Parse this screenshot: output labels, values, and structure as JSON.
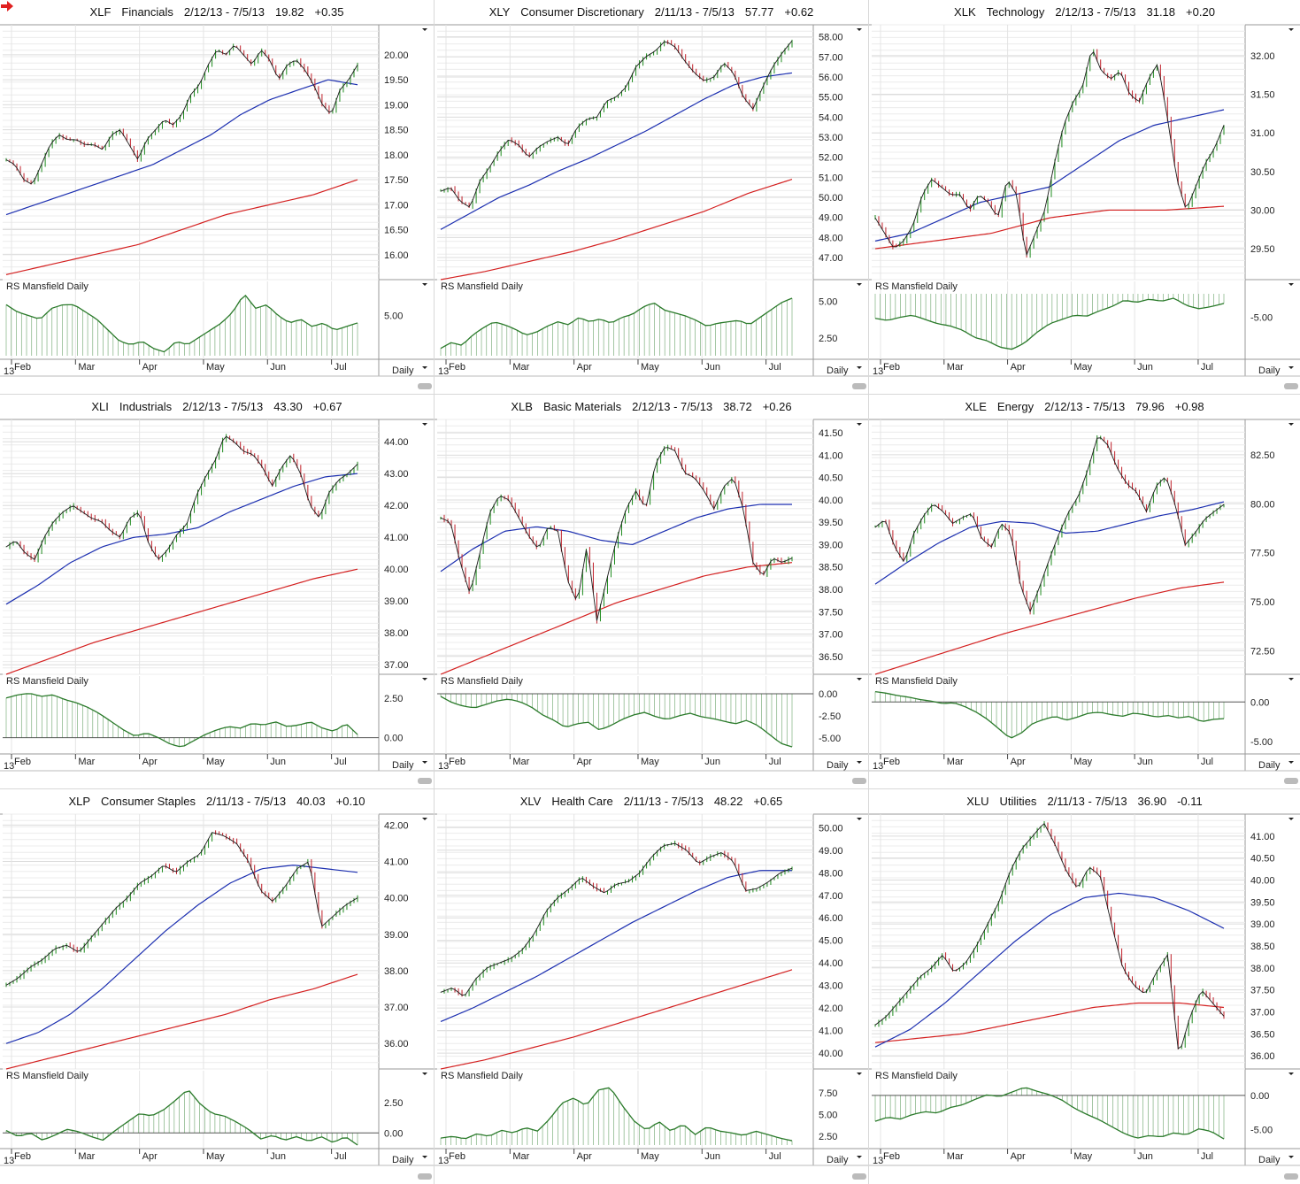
{
  "period_label": "Daily",
  "rs_title": "RS Mansfield Daily",
  "year_label": "13",
  "months": [
    "Feb",
    "Mar",
    "Apr",
    "May",
    "Jun",
    "Jul"
  ],
  "colors": {
    "price": "#1a1a1a",
    "up": "#1e8c1e",
    "down": "#c0202a",
    "ma_fast": "#1c2fb0",
    "ma_slow": "#d42020",
    "rs": "#2a7a2a"
  },
  "chart_data": [
    {
      "type": "line",
      "symbol": "XLF",
      "name": "Financials",
      "range": "2/12/13 - 7/5/13",
      "last": "19.82",
      "change": "+0.35",
      "flag": true,
      "ylim": [
        15.5,
        20.6
      ],
      "ticks": [
        "20.00",
        "19.50",
        "19.00",
        "18.50",
        "18.00",
        "17.50",
        "17.00",
        "16.50",
        "16.00"
      ],
      "price": [
        17.9,
        17.8,
        17.5,
        17.4,
        17.8,
        18.2,
        18.4,
        18.3,
        18.3,
        18.2,
        18.2,
        18.1,
        18.4,
        18.5,
        18.2,
        17.9,
        18.3,
        18.5,
        18.7,
        18.6,
        18.8,
        19.2,
        19.4,
        19.8,
        20.1,
        20.0,
        20.2,
        20.0,
        19.8,
        20.1,
        19.9,
        19.5,
        19.8,
        19.9,
        19.7,
        19.4,
        19.0,
        18.8,
        19.3,
        19.5,
        19.8
      ],
      "ma_fast": [
        16.8,
        17.0,
        17.2,
        17.4,
        17.6,
        17.8,
        18.1,
        18.4,
        18.8,
        19.1,
        19.3,
        19.5,
        19.4
      ],
      "ma_slow": [
        15.6,
        15.8,
        16.0,
        16.2,
        16.5,
        16.8,
        17.0,
        17.2,
        17.5
      ],
      "rs_ylim": [
        3.9,
        5.6
      ],
      "rs_ticks": [
        "5.00"
      ],
      "rs_zero": 3.9,
      "rs": [
        5.3,
        5.1,
        5.0,
        4.9,
        5.2,
        5.3,
        5.3,
        5.1,
        4.9,
        4.6,
        4.3,
        4.2,
        4.3,
        4.1,
        4.0,
        4.3,
        4.2,
        4.4,
        4.6,
        4.8,
        5.1,
        5.6,
        5.2,
        5.3,
        5.0,
        4.8,
        4.9,
        4.7,
        4.8,
        4.6,
        4.7,
        4.8
      ]
    },
    {
      "type": "line",
      "symbol": "XLY",
      "name": "Consumer Discretionary",
      "range": "2/11/13 - 7/5/13",
      "last": "57.77",
      "change": "+0.62",
      "flag": false,
      "ylim": [
        45.9,
        58.6
      ],
      "ticks": [
        "58.00",
        "57.00",
        "56.00",
        "55.00",
        "54.00",
        "53.00",
        "52.00",
        "51.00",
        "50.00",
        "49.00",
        "48.00",
        "47.00"
      ],
      "price": [
        50.3,
        50.5,
        49.8,
        49.5,
        50.8,
        51.5,
        52.3,
        52.9,
        52.6,
        52.0,
        52.5,
        52.8,
        53.0,
        52.6,
        53.5,
        53.9,
        54.0,
        54.8,
        55.0,
        55.5,
        56.5,
        57.0,
        57.3,
        57.8,
        57.5,
        56.8,
        56.2,
        55.8,
        56.0,
        56.7,
        56.2,
        55.0,
        54.4,
        55.5,
        56.5,
        57.2,
        57.8
      ],
      "ma_fast": [
        48.4,
        49.2,
        50.0,
        50.6,
        51.3,
        51.9,
        52.6,
        53.3,
        54.1,
        54.9,
        55.6,
        56.0,
        56.2
      ],
      "ma_slow": [
        45.9,
        46.3,
        46.8,
        47.3,
        47.9,
        48.6,
        49.3,
        50.2,
        50.9
      ],
      "rs_ylim": [
        1.3,
        5.5
      ],
      "rs_ticks": [
        "5.00",
        "2.50"
      ],
      "rs_zero": 1.3,
      "rs": [
        1.8,
        2.2,
        2.0,
        2.7,
        3.2,
        3.6,
        3.4,
        3.1,
        2.7,
        2.9,
        3.3,
        3.6,
        3.4,
        3.9,
        3.6,
        3.8,
        3.5,
        3.9,
        4.1,
        4.6,
        4.9,
        4.4,
        4.2,
        4.0,
        3.7,
        3.3,
        3.5,
        3.6,
        3.7,
        3.4,
        3.9,
        4.4,
        4.9,
        5.2
      ]
    },
    {
      "type": "line",
      "symbol": "XLK",
      "name": "Technology",
      "range": "2/12/13 - 7/5/13",
      "last": "31.18",
      "change": "+0.20",
      "flag": false,
      "ylim": [
        29.1,
        32.4
      ],
      "ticks": [
        "32.00",
        "31.50",
        "31.00",
        "30.50",
        "30.00",
        "29.50"
      ],
      "price": [
        29.9,
        29.7,
        29.5,
        29.6,
        29.8,
        30.2,
        30.4,
        30.3,
        30.2,
        30.2,
        30.0,
        30.2,
        30.1,
        29.9,
        30.4,
        30.2,
        29.4,
        29.7,
        30.0,
        30.6,
        31.1,
        31.4,
        31.6,
        32.1,
        31.8,
        31.7,
        31.8,
        31.5,
        31.4,
        31.7,
        31.9,
        31.2,
        30.4,
        30.0,
        30.3,
        30.6,
        30.8,
        31.1
      ],
      "ma_fast": [
        29.6,
        29.7,
        29.9,
        30.1,
        30.2,
        30.3,
        30.6,
        30.9,
        31.1,
        31.2,
        31.3
      ],
      "ma_slow": [
        29.5,
        29.6,
        29.7,
        29.9,
        30.0,
        30.0,
        30.05
      ],
      "rs_ylim": [
        -8.6,
        -2.8
      ],
      "rs_ticks": [
        "-5.00"
      ],
      "rs_zero": -2.8,
      "rs": [
        -5.1,
        -5.3,
        -5.0,
        -4.8,
        -5.2,
        -5.6,
        -5.8,
        -6.2,
        -6.9,
        -7.2,
        -7.8,
        -8.0,
        -7.4,
        -6.4,
        -5.6,
        -5.2,
        -4.8,
        -4.9,
        -4.4,
        -4.0,
        -3.4,
        -3.6,
        -3.3,
        -3.5,
        -3.2,
        -3.9,
        -4.2,
        -4.0,
        -3.7
      ]
    },
    {
      "type": "line",
      "symbol": "XLI",
      "name": "Industrials",
      "range": "2/12/13 - 7/5/13",
      "last": "43.30",
      "change": "+0.67",
      "flag": false,
      "ylim": [
        36.7,
        44.7
      ],
      "ticks": [
        "44.00",
        "43.00",
        "42.00",
        "41.00",
        "40.00",
        "39.00",
        "38.00",
        "37.00"
      ],
      "price": [
        40.7,
        40.9,
        40.5,
        40.3,
        41.0,
        41.5,
        41.8,
        42.0,
        41.8,
        41.6,
        41.5,
        41.2,
        41.0,
        41.6,
        41.8,
        40.8,
        40.3,
        40.6,
        41.1,
        41.4,
        42.3,
        42.9,
        43.4,
        44.2,
        44.0,
        43.7,
        43.6,
        43.2,
        42.6,
        43.2,
        43.6,
        43.0,
        42.0,
        41.6,
        42.4,
        42.8,
        43.0,
        43.3
      ],
      "ma_fast": [
        38.9,
        39.5,
        40.2,
        40.7,
        41.0,
        41.1,
        41.3,
        41.8,
        42.2,
        42.6,
        42.9,
        43.0
      ],
      "ma_slow": [
        36.7,
        37.2,
        37.7,
        38.1,
        38.5,
        38.9,
        39.3,
        39.7,
        40.0
      ],
      "rs_ylim": [
        -0.8,
        3.1
      ],
      "rs_ticks": [
        "2.50",
        "0.00"
      ],
      "rs_zero": 0.0,
      "rs": [
        2.5,
        2.7,
        2.8,
        2.6,
        2.7,
        2.4,
        2.2,
        1.9,
        1.5,
        1.0,
        0.5,
        0.1,
        0.3,
        0.0,
        -0.4,
        -0.6,
        -0.2,
        0.2,
        0.5,
        0.7,
        0.6,
        0.9,
        0.8,
        1.0,
        0.7,
        0.8,
        1.0,
        0.6,
        0.4,
        0.9,
        0.2
      ]
    },
    {
      "type": "line",
      "symbol": "XLB",
      "name": "Basic Materials",
      "range": "2/12/13 - 7/5/13",
      "last": "38.72",
      "change": "+0.26",
      "flag": false,
      "ylim": [
        36.1,
        41.8
      ],
      "ticks": [
        "41.50",
        "41.00",
        "40.50",
        "40.00",
        "39.50",
        "39.00",
        "38.50",
        "38.00",
        "37.50",
        "37.00",
        "36.50"
      ],
      "price": [
        39.6,
        39.5,
        38.6,
        37.9,
        38.8,
        39.7,
        40.1,
        40.0,
        39.6,
        39.2,
        38.9,
        39.4,
        39.3,
        38.2,
        37.7,
        39.0,
        37.3,
        38.2,
        39.1,
        39.8,
        40.2,
        39.8,
        40.8,
        41.2,
        41.1,
        40.6,
        40.5,
        40.2,
        39.8,
        40.3,
        40.5,
        39.8,
        38.6,
        38.3,
        38.7,
        38.6,
        38.7
      ],
      "ma_fast": [
        38.4,
        38.9,
        39.3,
        39.4,
        39.3,
        39.1,
        39.0,
        39.3,
        39.6,
        39.8,
        39.9,
        39.9
      ],
      "ma_slow": [
        36.1,
        36.5,
        36.9,
        37.3,
        37.7,
        38.0,
        38.3,
        38.5,
        38.6
      ],
      "rs_ylim": [
        -6.4,
        0.6
      ],
      "rs_ticks": [
        "0.00",
        "-2.50",
        "-5.00"
      ],
      "rs_zero": 0.0,
      "rs": [
        -0.3,
        -1.0,
        -1.4,
        -1.6,
        -1.2,
        -0.8,
        -0.6,
        -0.9,
        -1.5,
        -2.4,
        -3.0,
        -3.8,
        -3.4,
        -3.2,
        -4.1,
        -3.6,
        -2.9,
        -2.4,
        -2.1,
        -2.6,
        -2.9,
        -2.5,
        -2.2,
        -2.6,
        -2.8,
        -3.1,
        -3.4,
        -3.0,
        -3.6,
        -4.6,
        -5.6,
        -6.0
      ]
    },
    {
      "type": "line",
      "symbol": "XLE",
      "name": "Energy",
      "range": "2/12/13 - 7/5/13",
      "last": "79.96",
      "change": "+0.98",
      "flag": false,
      "ylim": [
        71.3,
        84.3
      ],
      "ticks": [
        "82.50",
        "80.00",
        "77.50",
        "75.00",
        "72.50"
      ],
      "price": [
        78.8,
        79.2,
        77.8,
        77.0,
        78.5,
        79.4,
        80.0,
        79.6,
        79.0,
        79.3,
        79.5,
        78.2,
        77.8,
        79.0,
        78.5,
        75.8,
        74.5,
        75.8,
        77.2,
        78.5,
        79.6,
        80.4,
        81.8,
        83.5,
        83.0,
        81.8,
        81.0,
        80.6,
        79.6,
        80.9,
        81.4,
        79.9,
        77.9,
        78.5,
        79.2,
        79.6,
        79.96
      ],
      "ma_fast": [
        75.9,
        77.0,
        78.0,
        78.8,
        79.1,
        79.0,
        78.5,
        78.6,
        79.0,
        79.4,
        79.7,
        80.1
      ],
      "ma_slow": [
        71.3,
        72.0,
        72.7,
        73.4,
        74.0,
        74.6,
        75.2,
        75.7,
        76.0
      ],
      "rs_ylim": [
        -6.1,
        1.7
      ],
      "rs_ticks": [
        "0.00",
        "-5.00"
      ],
      "rs_zero": 0.0,
      "rs": [
        1.3,
        1.1,
        0.8,
        0.6,
        0.3,
        0.1,
        -0.2,
        -0.1,
        -0.6,
        -1.3,
        -2.2,
        -3.4,
        -4.6,
        -3.9,
        -2.7,
        -2.2,
        -1.8,
        -2.3,
        -1.9,
        -1.4,
        -1.3,
        -1.6,
        -1.8,
        -1.4,
        -1.6,
        -1.9,
        -1.7,
        -2.0,
        -1.8,
        -2.5,
        -2.2,
        -2.1
      ]
    },
    {
      "type": "line",
      "symbol": "XLP",
      "name": "Consumer Staples",
      "range": "2/11/13 - 7/5/13",
      "last": "40.03",
      "change": "+0.10",
      "flag": false,
      "ylim": [
        35.3,
        42.3
      ],
      "ticks": [
        "42.00",
        "41.00",
        "40.00",
        "39.00",
        "38.00",
        "37.00",
        "36.00"
      ],
      "price": [
        37.6,
        37.8,
        38.1,
        38.3,
        38.6,
        38.7,
        38.5,
        38.9,
        39.3,
        39.7,
        40.0,
        40.4,
        40.6,
        40.9,
        40.7,
        41.0,
        41.2,
        41.8,
        41.7,
        41.5,
        41.0,
        40.2,
        39.9,
        40.3,
        40.8,
        41.0,
        39.2,
        39.5,
        39.8,
        40.0
      ],
      "ma_fast": [
        36.0,
        36.3,
        36.8,
        37.5,
        38.3,
        39.1,
        39.8,
        40.4,
        40.8,
        40.9,
        40.8,
        40.7
      ],
      "ma_slow": [
        35.3,
        35.6,
        35.9,
        36.2,
        36.5,
        36.8,
        37.2,
        37.5,
        37.9
      ],
      "rs_ylim": [
        -1.0,
        4.1
      ],
      "rs_ticks": [
        "2.50",
        "0.00"
      ],
      "rs_zero": 0.0,
      "rs": [
        0.2,
        -0.3,
        0.0,
        -0.6,
        -0.2,
        0.3,
        0.1,
        -0.3,
        -0.6,
        0.2,
        0.9,
        1.6,
        1.4,
        1.9,
        2.7,
        3.6,
        2.4,
        1.6,
        1.4,
        0.9,
        0.3,
        -0.5,
        -0.2,
        -0.6,
        -0.3,
        -0.7,
        -0.3,
        -0.8,
        -0.3,
        -1.0
      ]
    },
    {
      "type": "line",
      "symbol": "XLV",
      "name": "Health Care",
      "range": "2/11/13 - 7/5/13",
      "last": "48.22",
      "change": "+0.65",
      "flag": false,
      "ylim": [
        39.3,
        50.6
      ],
      "ticks": [
        "50.00",
        "49.00",
        "48.00",
        "47.00",
        "46.00",
        "45.00",
        "44.00",
        "43.00",
        "42.00",
        "41.00",
        "40.00"
      ],
      "price": [
        42.7,
        42.9,
        42.5,
        43.3,
        43.8,
        44.0,
        44.2,
        44.6,
        45.3,
        46.3,
        46.9,
        47.3,
        47.8,
        47.4,
        47.1,
        47.5,
        47.6,
        48.0,
        48.7,
        49.2,
        49.3,
        49.0,
        48.4,
        48.7,
        48.9,
        48.5,
        47.2,
        47.3,
        47.6,
        48.0,
        48.2
      ],
      "ma_fast": [
        41.4,
        42.0,
        42.7,
        43.4,
        44.2,
        45.0,
        45.8,
        46.5,
        47.2,
        47.8,
        48.1,
        48.1
      ],
      "ma_slow": [
        39.3,
        39.7,
        40.2,
        40.7,
        41.3,
        41.9,
        42.5,
        43.1,
        43.7
      ],
      "rs_ylim": [
        1.5,
        8.6
      ],
      "rs_ticks": [
        "7.50",
        "5.00",
        "2.50"
      ],
      "rs_zero": 1.5,
      "rs": [
        2.3,
        2.5,
        2.2,
        2.8,
        2.5,
        3.2,
        2.9,
        3.5,
        3.1,
        4.5,
        6.3,
        6.9,
        6.0,
        7.8,
        8.1,
        6.0,
        4.2,
        3.2,
        4.2,
        3.1,
        3.9,
        2.7,
        3.6,
        3.1,
        2.9,
        2.6,
        3.1,
        2.7,
        2.3,
        2.0
      ]
    },
    {
      "type": "line",
      "symbol": "XLU",
      "name": "Utilities",
      "range": "2/11/13 - 7/5/13",
      "last": "36.90",
      "change": "-0.11",
      "flag": false,
      "ylim": [
        35.7,
        41.5
      ],
      "ticks": [
        "41.00",
        "40.50",
        "40.00",
        "39.50",
        "39.00",
        "38.50",
        "38.00",
        "37.50",
        "37.00",
        "36.50",
        "36.00"
      ],
      "price": [
        36.7,
        36.9,
        37.2,
        37.5,
        37.8,
        38.0,
        38.3,
        37.9,
        38.1,
        38.5,
        39.0,
        39.5,
        40.2,
        40.7,
        41.0,
        41.3,
        40.8,
        40.2,
        39.8,
        40.3,
        40.1,
        39.0,
        38.0,
        37.6,
        37.4,
        37.9,
        38.3,
        36.0,
        36.9,
        37.5,
        37.2,
        36.9
      ],
      "ma_fast": [
        36.2,
        36.6,
        37.2,
        37.9,
        38.6,
        39.2,
        39.6,
        39.7,
        39.6,
        39.3,
        38.9
      ],
      "ma_slow": [
        36.3,
        36.4,
        36.5,
        36.7,
        36.9,
        37.1,
        37.2,
        37.2,
        37.1
      ],
      "rs_ylim": [
        -7.3,
        1.8
      ],
      "rs_ticks": [
        "0.00",
        "-5.00"
      ],
      "rs_zero": 0.0,
      "rs": [
        -3.8,
        -3.2,
        -3.5,
        -2.8,
        -2.4,
        -2.6,
        -1.8,
        -1.4,
        -0.6,
        0.1,
        -0.2,
        0.5,
        1.2,
        0.6,
        0.1,
        -0.7,
        -1.9,
        -2.8,
        -3.6,
        -4.6,
        -5.6,
        -6.3,
        -5.9,
        -6.1,
        -5.5,
        -5.8,
        -4.9,
        -5.3,
        -6.4
      ]
    }
  ]
}
